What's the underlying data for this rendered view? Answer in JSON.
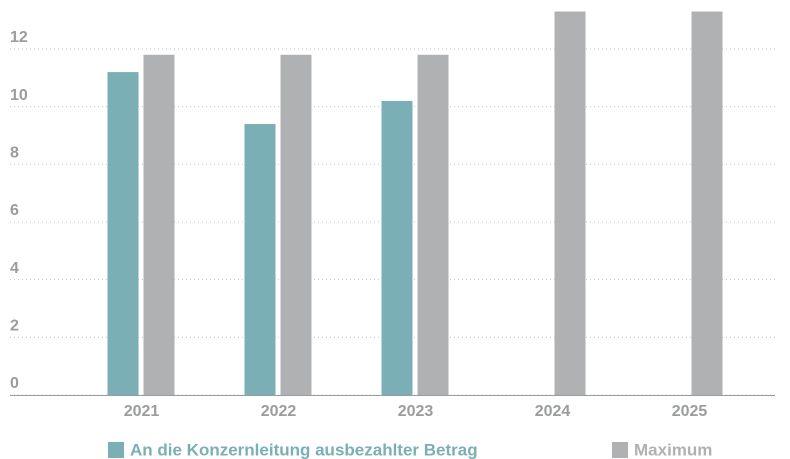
{
  "chart_data": {
    "type": "bar",
    "categories": [
      "2021",
      "2022",
      "2023",
      "2024",
      "2025"
    ],
    "series": [
      {
        "name": "An die Konzernleitung ausbezahlter Betrag",
        "color": "#7aafb5",
        "values": [
          11.2,
          9.4,
          10.2,
          null,
          null
        ]
      },
      {
        "name": "Maximum",
        "color": "#afb1b2",
        "values": [
          11.8,
          11.8,
          11.8,
          13.3,
          13.3
        ]
      }
    ],
    "ylim": [
      0,
      13.7
    ],
    "yticks": [
      0,
      2,
      4,
      6,
      8,
      10,
      12
    ],
    "grid": true,
    "legend": "bottom"
  }
}
